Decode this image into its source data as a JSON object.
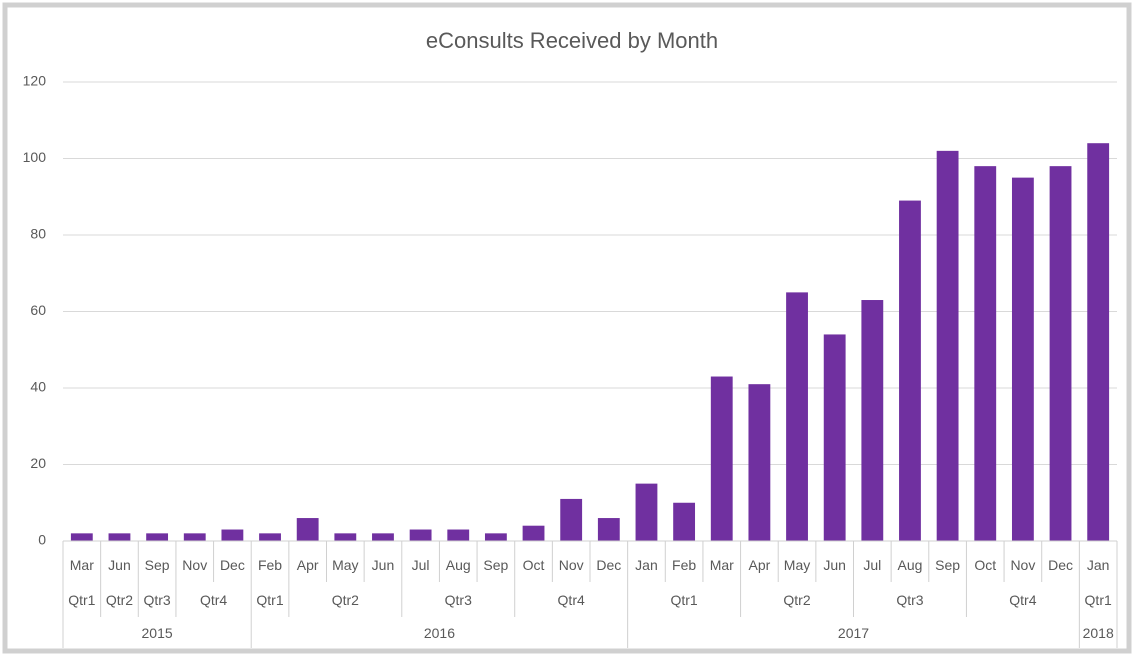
{
  "chart_data": {
    "type": "bar",
    "title": "eConsults Received by Month",
    "categories": [
      "Mar",
      "Jun",
      "Sep",
      "Nov",
      "Dec",
      "Feb",
      "Apr",
      "May",
      "Jun",
      "Jul",
      "Aug",
      "Sep",
      "Oct",
      "Nov",
      "Dec",
      "Jan",
      "Feb",
      "Mar",
      "Apr",
      "May",
      "Jun",
      "Jul",
      "Aug",
      "Sep",
      "Oct",
      "Nov",
      "Dec",
      "Jan"
    ],
    "values": [
      2,
      2,
      2,
      2,
      3,
      2,
      6,
      2,
      2,
      3,
      3,
      2,
      4,
      11,
      6,
      15,
      10,
      43,
      41,
      65,
      54,
      63,
      89,
      102,
      98,
      95,
      98,
      104
    ],
    "quarters": [
      {
        "label": "Qtr1",
        "span": 1
      },
      {
        "label": "Qtr2",
        "span": 1
      },
      {
        "label": "Qtr3",
        "span": 1
      },
      {
        "label": "Qtr4",
        "span": 2
      },
      {
        "label": "Qtr1",
        "span": 1
      },
      {
        "label": "Qtr2",
        "span": 3
      },
      {
        "label": "Qtr3",
        "span": 3
      },
      {
        "label": "Qtr4",
        "span": 3
      },
      {
        "label": "Qtr1",
        "span": 3
      },
      {
        "label": "Qtr2",
        "span": 3
      },
      {
        "label": "Qtr3",
        "span": 3
      },
      {
        "label": "Qtr4",
        "span": 3
      },
      {
        "label": "Qtr1",
        "span": 1
      }
    ],
    "years": [
      {
        "label": "2015",
        "span": 5
      },
      {
        "label": "2016",
        "span": 10
      },
      {
        "label": "2017",
        "span": 12
      },
      {
        "label": "2018",
        "span": 1
      }
    ],
    "color": "#7030a0",
    "ylim": [
      0,
      120
    ],
    "yticks": [
      0,
      20,
      40,
      60,
      80,
      100,
      120
    ],
    "grid": true
  }
}
